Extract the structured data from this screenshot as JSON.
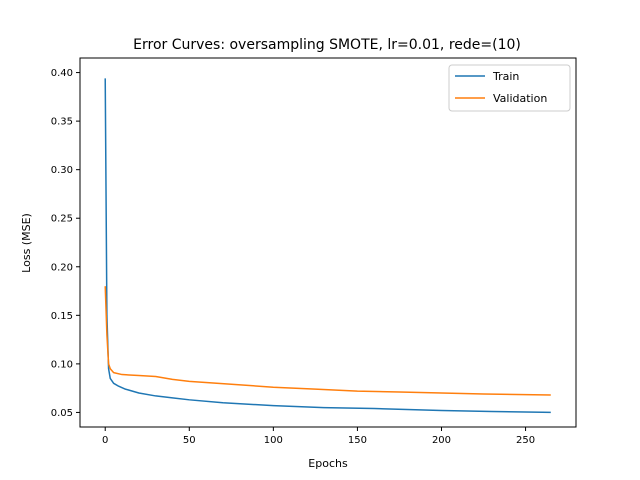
{
  "chart_data": {
    "type": "line",
    "title": "Error Curves: oversampling SMOTE, lr=0.01, rede=(10)",
    "xlabel": "Epochs",
    "ylabel": "Loss (MSE)",
    "xlim": [
      -15,
      280
    ],
    "ylim": [
      0.035,
      0.415
    ],
    "xticks": [
      0,
      50,
      100,
      150,
      200,
      250
    ],
    "yticks": [
      0.05,
      0.1,
      0.15,
      0.2,
      0.25,
      0.3,
      0.35,
      0.4
    ],
    "ytick_labels": [
      "0.05",
      "0.10",
      "0.15",
      "0.20",
      "0.25",
      "0.30",
      "0.35",
      "0.40"
    ],
    "grid": false,
    "legend_position": "upper right",
    "series": [
      {
        "name": "Train",
        "color": "#1f77b4",
        "points": [
          [
            0,
            0.394
          ],
          [
            1,
            0.15
          ],
          [
            2,
            0.095
          ],
          [
            3,
            0.085
          ],
          [
            5,
            0.08
          ],
          [
            8,
            0.077
          ],
          [
            12,
            0.074
          ],
          [
            20,
            0.07
          ],
          [
            30,
            0.067
          ],
          [
            40,
            0.065
          ],
          [
            50,
            0.063
          ],
          [
            70,
            0.06
          ],
          [
            100,
            0.057
          ],
          [
            130,
            0.055
          ],
          [
            160,
            0.054
          ],
          [
            200,
            0.052
          ],
          [
            230,
            0.051
          ],
          [
            265,
            0.05
          ]
        ]
      },
      {
        "name": "Validation",
        "color": "#ff7f0e",
        "points": [
          [
            0,
            0.18
          ],
          [
            1,
            0.13
          ],
          [
            2,
            0.1
          ],
          [
            3,
            0.095
          ],
          [
            5,
            0.091
          ],
          [
            10,
            0.089
          ],
          [
            20,
            0.088
          ],
          [
            30,
            0.087
          ],
          [
            40,
            0.084
          ],
          [
            50,
            0.082
          ],
          [
            75,
            0.079
          ],
          [
            100,
            0.076
          ],
          [
            125,
            0.074
          ],
          [
            150,
            0.072
          ],
          [
            175,
            0.071
          ],
          [
            200,
            0.07
          ],
          [
            225,
            0.069
          ],
          [
            265,
            0.068
          ]
        ]
      }
    ]
  }
}
